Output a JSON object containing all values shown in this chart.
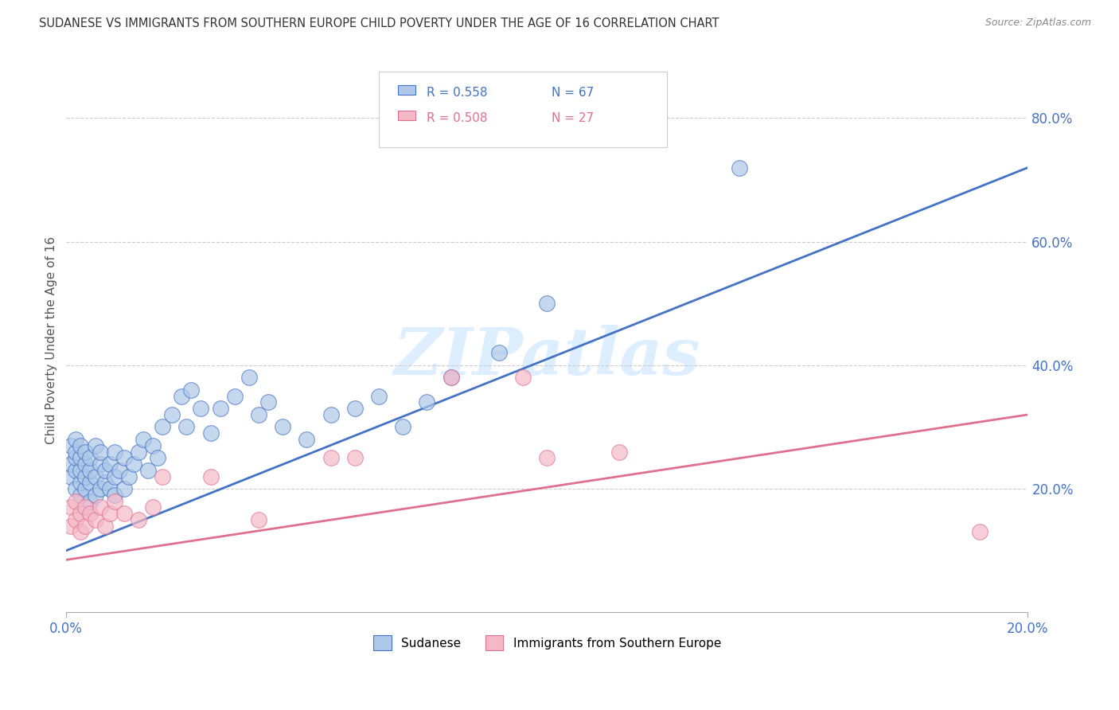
{
  "title": "SUDANESE VS IMMIGRANTS FROM SOUTHERN EUROPE CHILD POVERTY UNDER THE AGE OF 16 CORRELATION CHART",
  "source": "Source: ZipAtlas.com",
  "ylabel": "Child Poverty Under the Age of 16",
  "ylabel_right_ticks": [
    "80.0%",
    "60.0%",
    "40.0%",
    "20.0%"
  ],
  "ylabel_right_positions": [
    0.8,
    0.6,
    0.4,
    0.2
  ],
  "legend1_r": "R = 0.558",
  "legend1_n": "N = 67",
  "legend2_r": "R = 0.508",
  "legend2_n": "N = 27",
  "legend_label1": "Sudanese",
  "legend_label2": "Immigrants from Southern Europe",
  "blue_color": "#adc8e8",
  "blue_line_color": "#4472c4",
  "pink_color": "#f4b8c8",
  "pink_line_color": "#e07090",
  "watermark_color": "#ddeeff",
  "blue_scatter_x": [
    0.001,
    0.001,
    0.001,
    0.002,
    0.002,
    0.002,
    0.002,
    0.002,
    0.003,
    0.003,
    0.003,
    0.003,
    0.003,
    0.004,
    0.004,
    0.004,
    0.004,
    0.005,
    0.005,
    0.005,
    0.005,
    0.006,
    0.006,
    0.006,
    0.007,
    0.007,
    0.007,
    0.008,
    0.008,
    0.009,
    0.009,
    0.01,
    0.01,
    0.01,
    0.011,
    0.012,
    0.012,
    0.013,
    0.014,
    0.015,
    0.016,
    0.017,
    0.018,
    0.019,
    0.02,
    0.022,
    0.024,
    0.025,
    0.026,
    0.028,
    0.03,
    0.032,
    0.035,
    0.038,
    0.04,
    0.042,
    0.045,
    0.05,
    0.055,
    0.06,
    0.065,
    0.07,
    0.075,
    0.08,
    0.09,
    0.1,
    0.14
  ],
  "blue_scatter_y": [
    0.22,
    0.24,
    0.27,
    0.2,
    0.23,
    0.25,
    0.26,
    0.28,
    0.19,
    0.21,
    0.23,
    0.25,
    0.27,
    0.2,
    0.22,
    0.24,
    0.26,
    0.18,
    0.21,
    0.23,
    0.25,
    0.19,
    0.22,
    0.27,
    0.2,
    0.24,
    0.26,
    0.21,
    0.23,
    0.2,
    0.24,
    0.19,
    0.22,
    0.26,
    0.23,
    0.2,
    0.25,
    0.22,
    0.24,
    0.26,
    0.28,
    0.23,
    0.27,
    0.25,
    0.3,
    0.32,
    0.35,
    0.3,
    0.36,
    0.33,
    0.29,
    0.33,
    0.35,
    0.38,
    0.32,
    0.34,
    0.3,
    0.28,
    0.32,
    0.33,
    0.35,
    0.3,
    0.34,
    0.38,
    0.42,
    0.5,
    0.72
  ],
  "pink_scatter_x": [
    0.001,
    0.001,
    0.002,
    0.002,
    0.003,
    0.003,
    0.004,
    0.004,
    0.005,
    0.006,
    0.007,
    0.008,
    0.009,
    0.01,
    0.012,
    0.015,
    0.018,
    0.02,
    0.03,
    0.04,
    0.055,
    0.06,
    0.08,
    0.095,
    0.1,
    0.115,
    0.19
  ],
  "pink_scatter_y": [
    0.14,
    0.17,
    0.15,
    0.18,
    0.13,
    0.16,
    0.14,
    0.17,
    0.16,
    0.15,
    0.17,
    0.14,
    0.16,
    0.18,
    0.16,
    0.15,
    0.17,
    0.22,
    0.22,
    0.15,
    0.25,
    0.25,
    0.38,
    0.38,
    0.25,
    0.26,
    0.13
  ],
  "blue_line_x": [
    0.0,
    0.2
  ],
  "blue_line_y": [
    0.1,
    0.72
  ],
  "pink_line_x": [
    0.0,
    0.2
  ],
  "pink_line_y": [
    0.085,
    0.32
  ],
  "xlim": [
    0.0,
    0.2
  ],
  "ylim": [
    0.0,
    0.88
  ],
  "xtick_positions": [
    0.0,
    0.2
  ],
  "xtick_labels": [
    "0.0%",
    "20.0%"
  ]
}
